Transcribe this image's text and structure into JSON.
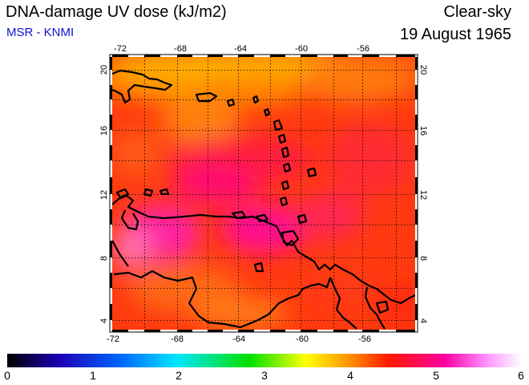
{
  "header": {
    "title": "DNA-damage UV dose (kJ/m2)",
    "source": "MSR - KNMI",
    "sky": "Clear-sky",
    "date": "19 August 1965"
  },
  "map": {
    "lon_ticks": [
      "-72",
      "-68",
      "-64",
      "-60",
      "-56"
    ],
    "lat_ticks": [
      "4",
      "8",
      "12",
      "16",
      "20"
    ],
    "lon_range": [
      -72,
      -52
    ],
    "lat_range": [
      3.5,
      20.5
    ]
  },
  "colorbar": {
    "tick_labels": [
      "0",
      "1",
      "2",
      "3",
      "4",
      "5",
      "6"
    ],
    "range": [
      0,
      6
    ],
    "colors": [
      "#000000",
      "#1c00b4",
      "#0066ff",
      "#00e6ff",
      "#00e000",
      "#ffff00",
      "#ff9a00",
      "#ff1a00",
      "#ff00a0",
      "#ff90ff",
      "#ffffff"
    ]
  }
}
